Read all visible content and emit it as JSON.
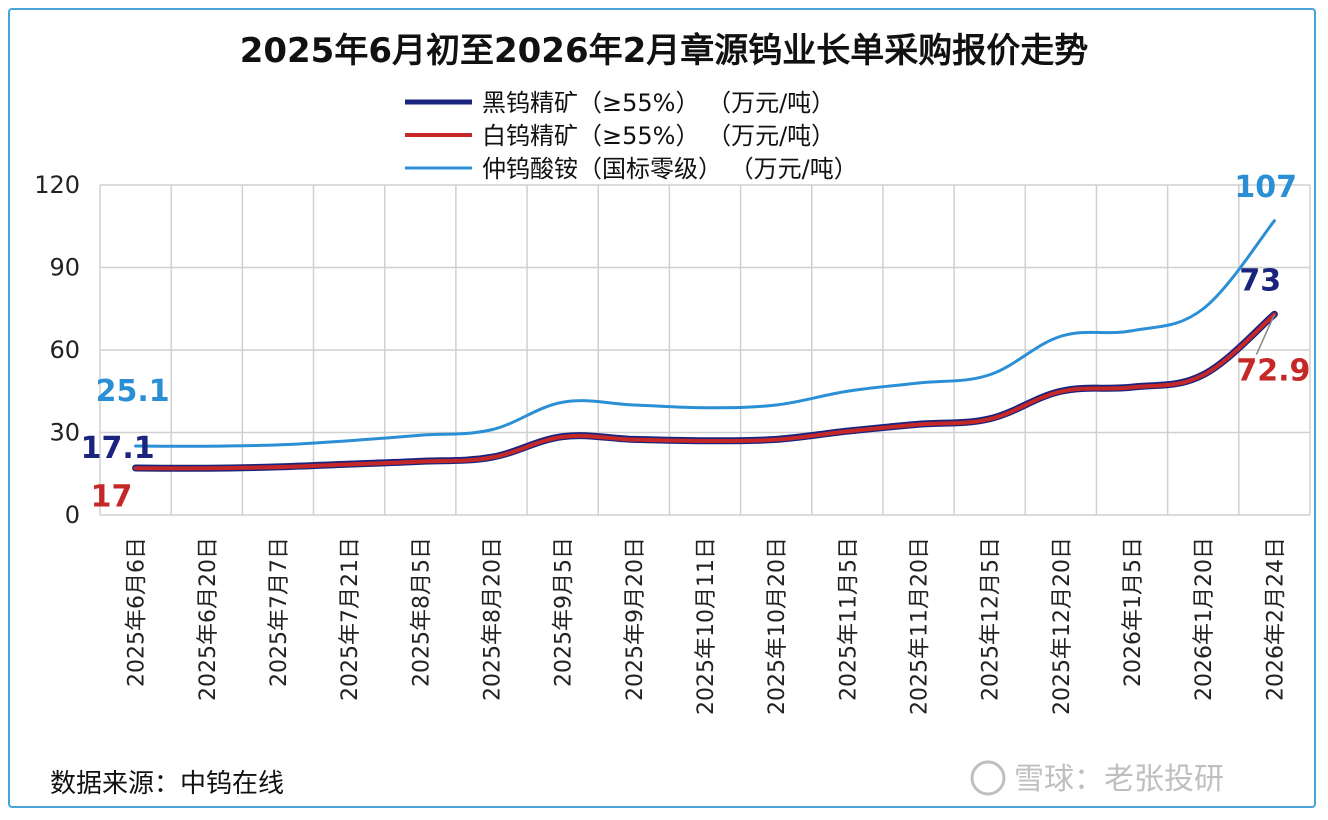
{
  "chart_data": {
    "type": "line",
    "title": "2025年6月初至2026年2月章源钨业长单采购报价走势",
    "categories": [
      "2025年6月6日",
      "2025年6月20日",
      "2025年7月7日",
      "2025年7月21日",
      "2025年8月5日",
      "2025年8月20日",
      "2025年9月5日",
      "2025年9月20日",
      "2025年10月11日",
      "2025年10月20日",
      "2025年11月5日",
      "2025年11月20日",
      "2025年12月5日",
      "2025年12月20日",
      "2026年1月5日",
      "2026年1月20日",
      "2026年2月24日"
    ],
    "ylim": [
      0,
      120
    ],
    "yticks": [
      0,
      30,
      60,
      90,
      120
    ],
    "grid": true,
    "legend_position": "top-center",
    "series": [
      {
        "name": "黑钨精矿（≥55%） （万元/吨）",
        "color": "#1a237e",
        "values": [
          17.1,
          17,
          17.5,
          18.5,
          19.5,
          21,
          28.5,
          27.5,
          27,
          27.5,
          30.5,
          33,
          35,
          45,
          46.5,
          51,
          73
        ]
      },
      {
        "name": "白钨精矿（≥55%） （万元/吨）",
        "color": "#c62828",
        "values": [
          17,
          17,
          17.4,
          18.4,
          19.4,
          20.9,
          28.4,
          27.4,
          26.9,
          27.4,
          30.4,
          32.9,
          34.9,
          44.9,
          46.4,
          50.9,
          72.9
        ]
      },
      {
        "name": "仲钨酸铵（国标零级） （万元/吨）",
        "color": "#2b8fd6",
        "values": [
          25.1,
          25,
          25.5,
          27,
          29,
          31,
          41,
          40,
          39,
          40,
          45,
          48,
          51,
          65,
          67,
          75,
          107
        ]
      }
    ],
    "annotations": [
      {
        "text": "25.1",
        "series": 2,
        "point": 0,
        "color": "#2b8fd6"
      },
      {
        "text": "17.1",
        "series": 0,
        "point": 0,
        "color": "#1a237e"
      },
      {
        "text": "17",
        "series": 1,
        "point": 0,
        "color": "#c62828"
      },
      {
        "text": "107",
        "series": 2,
        "point": 16,
        "color": "#2b8fd6"
      },
      {
        "text": "73",
        "series": 0,
        "point": 16,
        "color": "#1a237e"
      },
      {
        "text": "72.9",
        "series": 1,
        "point": 16,
        "color": "#c62828"
      }
    ]
  },
  "source": "数据来源：中钨在线",
  "watermark": "雪球：老张投研"
}
